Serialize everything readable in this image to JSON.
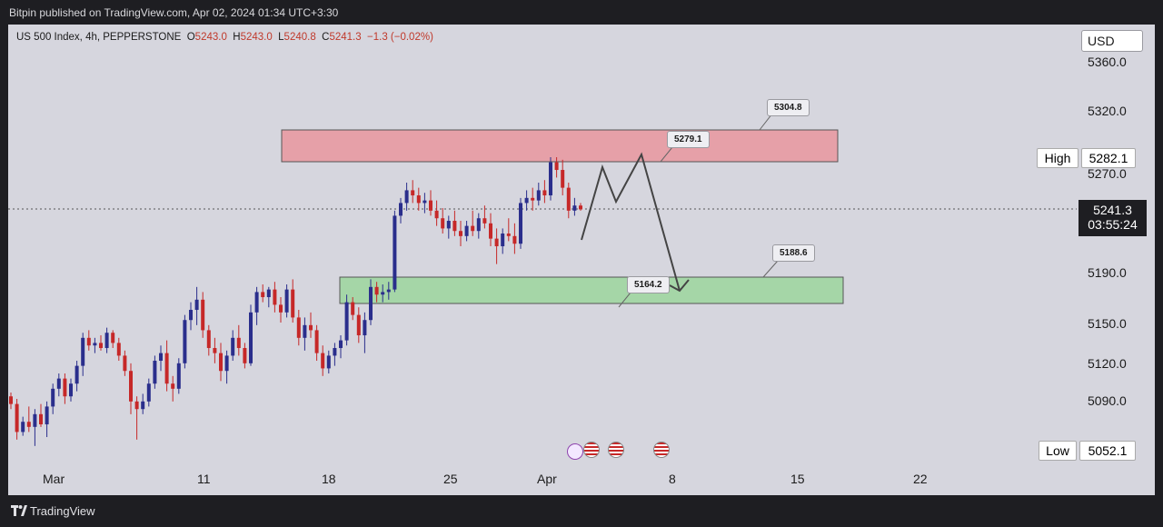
{
  "header": {
    "published": "Bitpin published on TradingView.com, Apr 02, 2024 01:34 UTC+3:30"
  },
  "legend": {
    "symbol": "US 500 Index, 4h, PEPPERSTONE",
    "o_key": "O",
    "o": "5243.0",
    "h_key": "H",
    "h": "5243.0",
    "l_key": "L",
    "l": "5240.8",
    "c_key": "C",
    "c": "5241.3",
    "chg": "−1.3 (−0.02%)"
  },
  "currency": "USD",
  "high_label": "High",
  "high_value": "5282.1",
  "low_label": "Low",
  "low_value": "5052.1",
  "current_price": "5241.3",
  "countdown": "03:55:24",
  "annotations": {
    "a1": "5304.8",
    "a2": "5279.1",
    "a3": "5188.6",
    "a4": "5164.2"
  },
  "footer": {
    "brand": "TradingView"
  },
  "colors": {
    "up": "#2a2e8c",
    "down": "#c62828",
    "resistance": "#e6a0a8",
    "support": "#a5d6a7",
    "background": "#d6d6de"
  },
  "chart_data": {
    "type": "candlestick",
    "title": "US 500 Index, 4h, PEPPERSTONE",
    "ylim": [
      5050,
      5380
    ],
    "y_ticks": [
      "5360.0",
      "5320.0",
      "5270.0",
      "5190.0",
      "5150.0",
      "5120.0",
      "5090.0"
    ],
    "x_ticks": [
      "Mar",
      "11",
      "18",
      "25",
      "Apr",
      "8",
      "15",
      "22"
    ],
    "resistance_zone": [
      5279.1,
      5304.8
    ],
    "support_zone": [
      5164.2,
      5188.6
    ],
    "projection": [
      5230,
      5272,
      5248,
      5276,
      5178
    ],
    "ohlc": [
      [
        5094,
        5097,
        5084,
        5088
      ],
      [
        5088,
        5092,
        5060,
        5066
      ],
      [
        5066,
        5078,
        5063,
        5074
      ],
      [
        5074,
        5086,
        5066,
        5070
      ],
      [
        5070,
        5084,
        5055,
        5080
      ],
      [
        5080,
        5088,
        5070,
        5072
      ],
      [
        5072,
        5090,
        5062,
        5086
      ],
      [
        5086,
        5104,
        5080,
        5100
      ],
      [
        5100,
        5112,
        5094,
        5108
      ],
      [
        5108,
        5112,
        5088,
        5094
      ],
      [
        5094,
        5108,
        5090,
        5104
      ],
      [
        5104,
        5122,
        5098,
        5118
      ],
      [
        5118,
        5144,
        5110,
        5140
      ],
      [
        5140,
        5146,
        5130,
        5134
      ],
      [
        5134,
        5140,
        5128,
        5136
      ],
      [
        5136,
        5142,
        5130,
        5132
      ],
      [
        5132,
        5148,
        5128,
        5144
      ],
      [
        5144,
        5146,
        5132,
        5136
      ],
      [
        5136,
        5140,
        5122,
        5126
      ],
      [
        5126,
        5130,
        5110,
        5114
      ],
      [
        5114,
        5120,
        5080,
        5090
      ],
      [
        5090,
        5094,
        5060,
        5084
      ],
      [
        5084,
        5096,
        5080,
        5090
      ],
      [
        5090,
        5108,
        5086,
        5104
      ],
      [
        5104,
        5126,
        5100,
        5122
      ],
      [
        5122,
        5134,
        5114,
        5128
      ],
      [
        5128,
        5138,
        5098,
        5104
      ],
      [
        5104,
        5110,
        5090,
        5100
      ],
      [
        5100,
        5124,
        5096,
        5120
      ],
      [
        5120,
        5158,
        5116,
        5154
      ],
      [
        5154,
        5168,
        5146,
        5162
      ],
      [
        5162,
        5180,
        5150,
        5170
      ],
      [
        5170,
        5176,
        5140,
        5146
      ],
      [
        5146,
        5150,
        5126,
        5132
      ],
      [
        5132,
        5140,
        5120,
        5128
      ],
      [
        5128,
        5136,
        5106,
        5114
      ],
      [
        5114,
        5130,
        5104,
        5126
      ],
      [
        5126,
        5146,
        5122,
        5140
      ],
      [
        5140,
        5150,
        5126,
        5132
      ],
      [
        5132,
        5136,
        5116,
        5120
      ],
      [
        5120,
        5166,
        5118,
        5160
      ],
      [
        5160,
        5180,
        5150,
        5176
      ],
      [
        5176,
        5182,
        5168,
        5172
      ],
      [
        5172,
        5180,
        5164,
        5178
      ],
      [
        5178,
        5184,
        5160,
        5166
      ],
      [
        5166,
        5172,
        5152,
        5160
      ],
      [
        5160,
        5182,
        5156,
        5178
      ],
      [
        5178,
        5186,
        5152,
        5156
      ],
      [
        5156,
        5162,
        5134,
        5140
      ],
      [
        5140,
        5156,
        5130,
        5150
      ],
      [
        5150,
        5160,
        5140,
        5146
      ],
      [
        5146,
        5150,
        5122,
        5128
      ],
      [
        5128,
        5134,
        5110,
        5116
      ],
      [
        5116,
        5130,
        5112,
        5126
      ],
      [
        5126,
        5136,
        5118,
        5132
      ],
      [
        5132,
        5142,
        5124,
        5138
      ],
      [
        5138,
        5174,
        5134,
        5168
      ],
      [
        5168,
        5172,
        5154,
        5158
      ],
      [
        5158,
        5164,
        5136,
        5142
      ],
      [
        5142,
        5160,
        5128,
        5154
      ],
      [
        5154,
        5186,
        5150,
        5180
      ],
      [
        5180,
        5184,
        5168,
        5174
      ],
      [
        5174,
        5182,
        5168,
        5176
      ],
      [
        5176,
        5184,
        5170,
        5178
      ],
      [
        5178,
        5240,
        5176,
        5236
      ],
      [
        5236,
        5250,
        5230,
        5246
      ],
      [
        5246,
        5262,
        5240,
        5256
      ],
      [
        5256,
        5264,
        5246,
        5252
      ],
      [
        5252,
        5258,
        5240,
        5246
      ],
      [
        5246,
        5254,
        5238,
        5248
      ],
      [
        5248,
        5256,
        5236,
        5240
      ],
      [
        5240,
        5248,
        5228,
        5234
      ],
      [
        5234,
        5242,
        5222,
        5226
      ],
      [
        5226,
        5236,
        5218,
        5232
      ],
      [
        5232,
        5240,
        5220,
        5224
      ],
      [
        5224,
        5232,
        5212,
        5220
      ],
      [
        5220,
        5232,
        5216,
        5228
      ],
      [
        5228,
        5240,
        5220,
        5224
      ],
      [
        5224,
        5238,
        5218,
        5234
      ],
      [
        5234,
        5244,
        5226,
        5230
      ],
      [
        5230,
        5238,
        5212,
        5218
      ],
      [
        5218,
        5226,
        5198,
        5212
      ],
      [
        5212,
        5226,
        5206,
        5222
      ],
      [
        5222,
        5234,
        5216,
        5220
      ],
      [
        5220,
        5230,
        5206,
        5214
      ],
      [
        5214,
        5250,
        5210,
        5246
      ],
      [
        5246,
        5256,
        5240,
        5250
      ],
      [
        5250,
        5258,
        5240,
        5248
      ],
      [
        5248,
        5262,
        5244,
        5256
      ],
      [
        5256,
        5264,
        5246,
        5252
      ],
      [
        5252,
        5282,
        5248,
        5278
      ],
      [
        5278,
        5282,
        5266,
        5272
      ],
      [
        5272,
        5280,
        5252,
        5258
      ],
      [
        5258,
        5262,
        5234,
        5240
      ],
      [
        5240,
        5250,
        5236,
        5244
      ],
      [
        5244,
        5246,
        5240,
        5241
      ]
    ]
  }
}
